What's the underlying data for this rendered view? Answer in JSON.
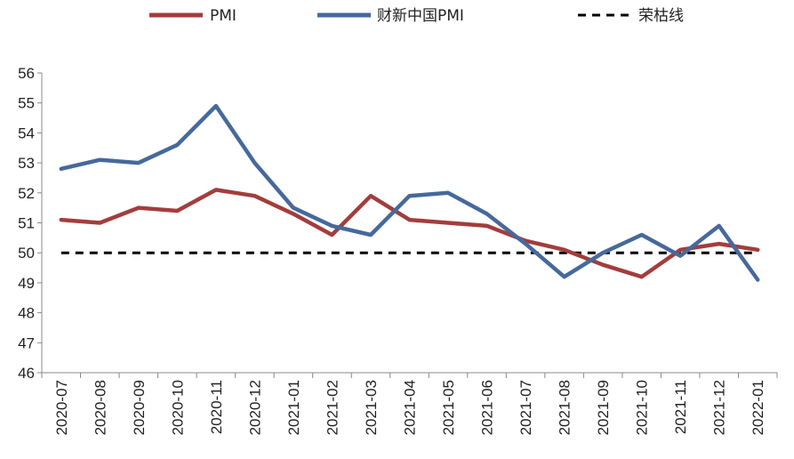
{
  "chart_data": {
    "type": "line",
    "title": "",
    "xlabel": "",
    "ylabel": "",
    "ylim": [
      46,
      56
    ],
    "yticks": [
      46,
      47,
      48,
      49,
      50,
      51,
      52,
      53,
      54,
      55,
      56
    ],
    "grid": false,
    "legend_position": "top",
    "categories": [
      "2020-07",
      "2020-08",
      "2020-09",
      "2020-10",
      "2020-11",
      "2020-12",
      "2021-01",
      "2021-02",
      "2021-03",
      "2021-04",
      "2021-05",
      "2021-06",
      "2021-07",
      "2021-08",
      "2021-09",
      "2021-10",
      "2021-11",
      "2021-12",
      "2022-01"
    ],
    "series": [
      {
        "name": "PMI",
        "color": "#a33d3d",
        "style": "solid",
        "values": [
          51.1,
          51.0,
          51.5,
          51.4,
          52.1,
          51.9,
          51.3,
          50.6,
          51.9,
          51.1,
          51.0,
          50.9,
          50.4,
          50.1,
          49.6,
          49.2,
          50.1,
          50.3,
          50.1
        ]
      },
      {
        "name": "财新中国PMI",
        "color": "#46699b",
        "style": "solid",
        "values": [
          52.8,
          53.1,
          53.0,
          53.6,
          54.9,
          53.0,
          51.5,
          50.9,
          50.6,
          51.9,
          52.0,
          51.3,
          50.3,
          49.2,
          50.0,
          50.6,
          49.9,
          50.9,
          49.1
        ]
      },
      {
        "name": "荣枯线",
        "color": "#000000",
        "style": "dashed",
        "values": [
          50,
          50,
          50,
          50,
          50,
          50,
          50,
          50,
          50,
          50,
          50,
          50,
          50,
          50,
          50,
          50,
          50,
          50,
          50
        ]
      }
    ]
  }
}
